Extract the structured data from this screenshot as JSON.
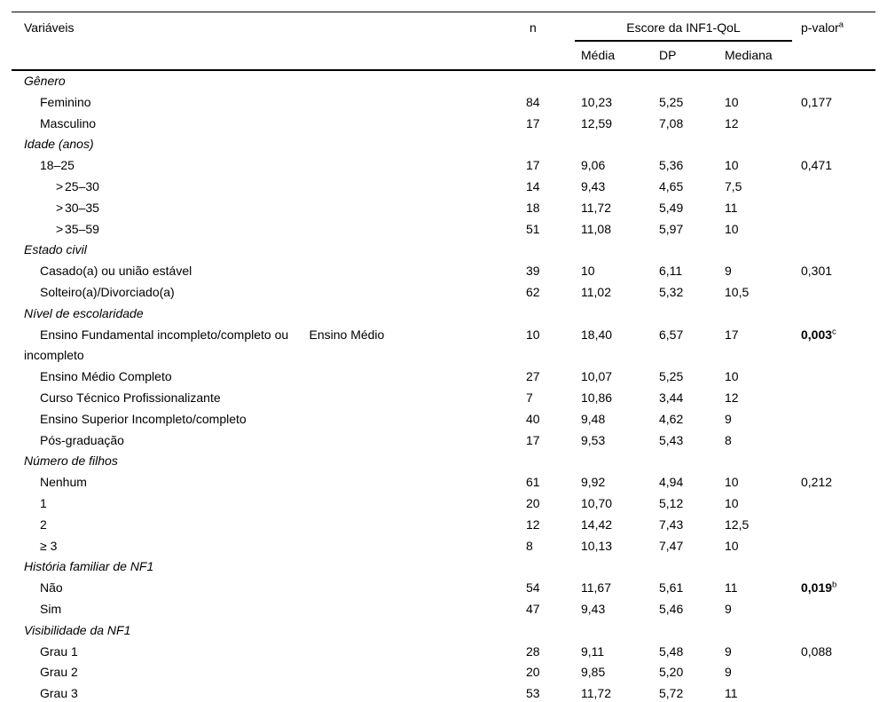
{
  "page": {
    "background": "#ffffff",
    "text_color": "#000000",
    "rule_color": "#000000"
  },
  "table": {
    "header": {
      "col_variables": "Variáveis",
      "col_n": "n",
      "group_label": "Escore da INF1-QoL",
      "sub_cols": [
        "Média",
        "DP",
        "Mediana"
      ],
      "col_pvalue": "p-valor",
      "pvalue_superscript": "a"
    },
    "rows": [
      {
        "type": "section",
        "label": "Gênero"
      },
      {
        "type": "data",
        "label": "Feminino",
        "n": "84",
        "media": "10,23",
        "dp": "5,25",
        "mediana": "10",
        "p": "0,177"
      },
      {
        "type": "data",
        "label": "Masculino",
        "n": "17",
        "media": "12,59",
        "dp": "7,08",
        "mediana": "12"
      },
      {
        "type": "section",
        "label": "Idade (anos)"
      },
      {
        "type": "data",
        "label": "18–25",
        "n": "17",
        "media": "9,06",
        "dp": "5,36",
        "mediana": "10",
        "p": "0,471"
      },
      {
        "type": "data",
        "prefix": ">",
        "label": "25–30",
        "n": "14",
        "media": "9,43",
        "dp": "4,65",
        "mediana": "7,5"
      },
      {
        "type": "data",
        "prefix": ">",
        "label": "30–35",
        "n": "18",
        "media": "11,72",
        "dp": "5,49",
        "mediana": "11"
      },
      {
        "type": "data",
        "prefix": ">",
        "label": "35–59",
        "n": "51",
        "media": "11,08",
        "dp": "5,97",
        "mediana": "10"
      },
      {
        "type": "section",
        "label": "Estado civil"
      },
      {
        "type": "data",
        "label": "Casado(a) ou união estável",
        "n": "39",
        "media": "10",
        "dp": "6,11",
        "mediana": "9",
        "p": "0,301"
      },
      {
        "type": "data",
        "label": "Solteiro(a)/Divorciado(a)",
        "n": "62",
        "media": "11,02",
        "dp": "5,32",
        "mediana": "10,5"
      },
      {
        "type": "section",
        "label": "Nível de escolaridade"
      },
      {
        "type": "data",
        "label": "Ensino Fundamental incompleto/completo ou      Ensino Médio\nincompleto",
        "n": "10",
        "media": "18,40",
        "dp": "6,57",
        "mediana": "17",
        "p": "0,003",
        "p_sup": "c",
        "p_bold": true
      },
      {
        "type": "data",
        "label": "Ensino Médio Completo",
        "n": "27",
        "media": "10,07",
        "dp": "5,25",
        "mediana": "10"
      },
      {
        "type": "data",
        "label": "Curso Técnico Profissionalizante",
        "n": "7",
        "media": "10,86",
        "dp": "3,44",
        "mediana": "12"
      },
      {
        "type": "data",
        "label": "Ensino Superior Incompleto/completo",
        "n": "40",
        "media": "9,48",
        "dp": "4,62",
        "mediana": "9"
      },
      {
        "type": "data",
        "label": "Pós-graduação",
        "n": "17",
        "media": "9,53",
        "dp": "5,43",
        "mediana": "8"
      },
      {
        "type": "section",
        "label": "Número de filhos"
      },
      {
        "type": "data",
        "label": "Nenhum",
        "n": "61",
        "media": "9,92",
        "dp": "4,94",
        "mediana": "10",
        "p": "0,212"
      },
      {
        "type": "data",
        "label": "1",
        "n": "20",
        "media": "10,70",
        "dp": "5,12",
        "mediana": "10"
      },
      {
        "type": "data",
        "label": "2",
        "n": "12",
        "media": "14,42",
        "dp": "7,43",
        "mediana": "12,5"
      },
      {
        "type": "data",
        "label": "≥ 3",
        "n": "8",
        "media": "10,13",
        "dp": "7,47",
        "mediana": "10"
      },
      {
        "type": "section",
        "label": "História familiar de NF1"
      },
      {
        "type": "data",
        "label": "Não",
        "n": "54",
        "media": "11,67",
        "dp": "5,61",
        "mediana": "11",
        "p": "0,019",
        "p_sup": "b",
        "p_bold": true
      },
      {
        "type": "data",
        "label": "Sim",
        "n": "47",
        "media": "9,43",
        "dp": "5,46",
        "mediana": "9"
      },
      {
        "type": "section",
        "label": "Visibilidade da NF1"
      },
      {
        "type": "data",
        "label": "Grau 1",
        "n": "28",
        "media": "9,11",
        "dp": "5,48",
        "mediana": "9",
        "p": "0,088"
      },
      {
        "type": "data",
        "label": "Grau 2",
        "n": "20",
        "media": "9,85",
        "dp": "5,20",
        "mediana": "9"
      },
      {
        "type": "data",
        "label": "Grau 3",
        "n": "53",
        "media": "11,72",
        "dp": "5,72",
        "mediana": "11"
      }
    ]
  }
}
